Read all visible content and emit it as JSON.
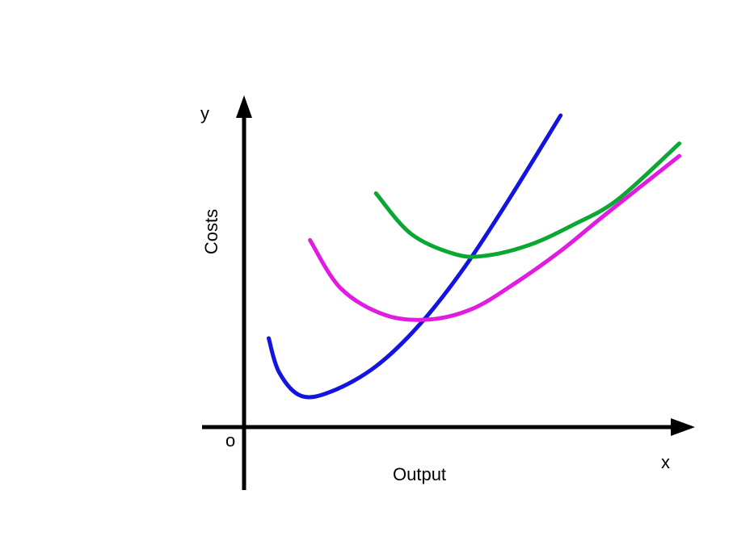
{
  "chart_data": {
    "type": "line",
    "title": "",
    "xlabel": "Output",
    "ylabel": "Costs",
    "x_axis_letter": "x",
    "y_axis_letter": "y",
    "origin_label": "o",
    "grid": false,
    "legend": "none",
    "xlim": [
      0,
      10
    ],
    "ylim": [
      0,
      10
    ],
    "series": [
      {
        "color": "#1414e0",
        "points": [
          [
            0.56,
            2.85
          ],
          [
            0.8,
            1.75
          ],
          [
            1.3,
            1.0
          ],
          [
            2.0,
            1.15
          ],
          [
            3.0,
            1.95
          ],
          [
            4.0,
            3.3
          ],
          [
            5.0,
            5.1
          ],
          [
            6.0,
            7.25
          ],
          [
            7.2,
            10.0
          ]
        ]
      },
      {
        "color": "#e01ce0",
        "points": [
          [
            1.5,
            6.0
          ],
          [
            2.2,
            4.45
          ],
          [
            3.2,
            3.6
          ],
          [
            4.2,
            3.45
          ],
          [
            5.2,
            3.8
          ],
          [
            6.2,
            4.65
          ],
          [
            7.2,
            5.65
          ],
          [
            8.2,
            6.8
          ],
          [
            9.9,
            8.7
          ]
        ]
      },
      {
        "color": "#0aa832",
        "points": [
          [
            3.0,
            7.5
          ],
          [
            3.8,
            6.2
          ],
          [
            4.8,
            5.55
          ],
          [
            5.5,
            5.5
          ],
          [
            6.5,
            5.85
          ],
          [
            7.5,
            6.5
          ],
          [
            8.5,
            7.3
          ],
          [
            9.9,
            9.1
          ]
        ]
      }
    ]
  }
}
